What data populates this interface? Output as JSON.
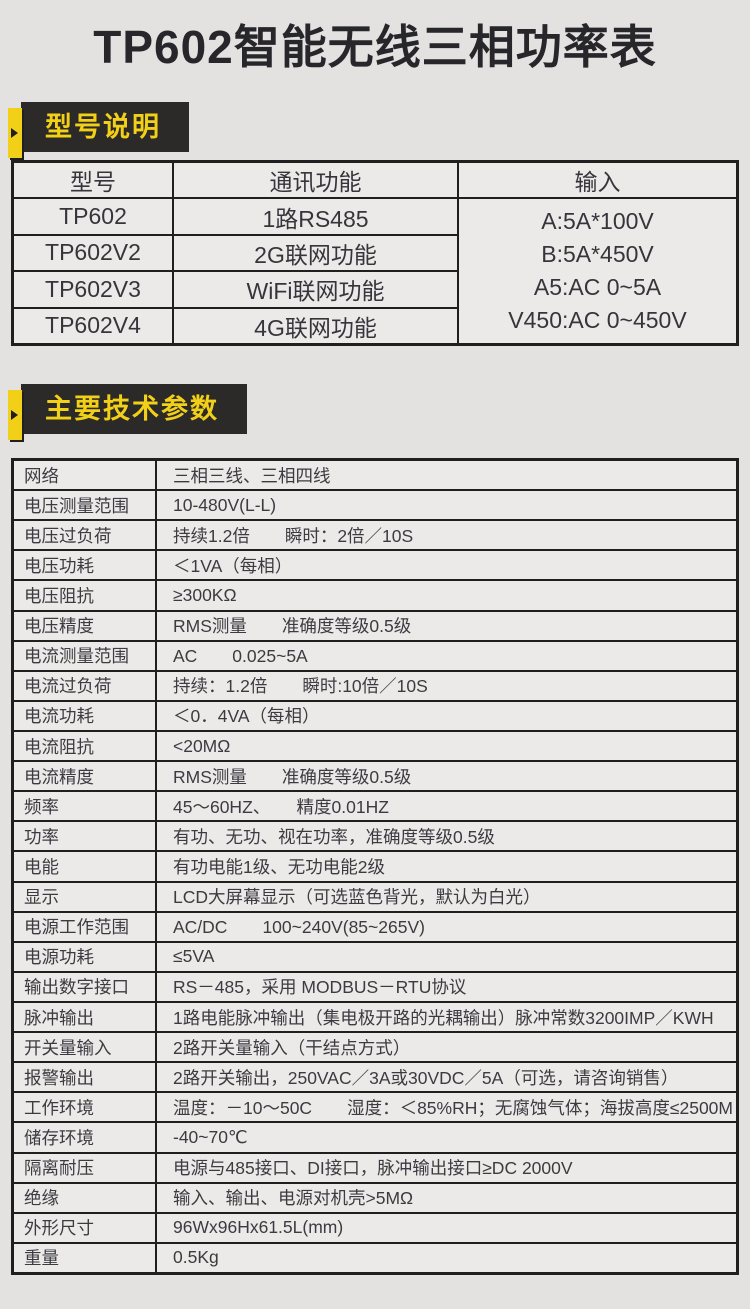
{
  "page": {
    "title": "TP602智能无线三相功率表"
  },
  "sections": {
    "model": {
      "label": "型号说明"
    },
    "specs": {
      "label": "主要技术参数"
    }
  },
  "colors": {
    "accent_yellow": "#f3d018",
    "header_black": "#2b2a28",
    "table_rule": "#1f1f1f",
    "page_bg": "#e3e2e0",
    "cell_bg": "#ebeae8"
  },
  "icons": {
    "ribbon_arrow": "right-triangle"
  },
  "model_table": {
    "headers": [
      "型号",
      "通讯功能",
      "输入"
    ],
    "rows": [
      {
        "model": "TP602",
        "comm": "1路RS485"
      },
      {
        "model": "TP602V2",
        "comm": "2G联网功能"
      },
      {
        "model": "TP602V3",
        "comm": "WiFi联网功能"
      },
      {
        "model": "TP602V4",
        "comm": "4G联网功能"
      }
    ],
    "input_options": [
      "A:5A*100V",
      "B:5A*450V",
      "A5:AC 0~5A",
      "V450:AC 0~450V"
    ]
  },
  "spec_table": {
    "rows": [
      {
        "label": "网络",
        "value": "三相三线、三相四线"
      },
      {
        "label": "电压测量范围",
        "value": "10-480V(L-L)"
      },
      {
        "label": "电压过负荷",
        "value": "持续1.2倍　　瞬时：2倍／10S"
      },
      {
        "label": "电压功耗",
        "value": "＜1VA（每相）"
      },
      {
        "label": "电压阻抗",
        "value": "≥300KΩ"
      },
      {
        "label": "电压精度",
        "value": "RMS测量　　准确度等级0.5级"
      },
      {
        "label": "电流测量范围",
        "value": "AC　　0.025~5A"
      },
      {
        "label": "电流过负荷",
        "value": "持续：1.2倍　　瞬时:10倍／10S"
      },
      {
        "label": "电流功耗",
        "value": "＜0．4VA（每相）"
      },
      {
        "label": "电流阻抗",
        "value": "<20MΩ"
      },
      {
        "label": "电流精度",
        "value": "RMS测量　　准确度等级0.5级"
      },
      {
        "label": "频率",
        "value": "45～60HZ、　　精度0.01HZ"
      },
      {
        "label": "功率",
        "value": "有功、无功、视在功率，准确度等级0.5级"
      },
      {
        "label": "电能",
        "value": "有功电能1级、无功电能2级"
      },
      {
        "label": "显示",
        "value": "LCD大屏幕显示（可选蓝色背光，默认为白光）"
      },
      {
        "label": "电源工作范围",
        "value": "AC/DC　　100~240V(85~265V)"
      },
      {
        "label": "电源功耗",
        "value": "≤5VA"
      },
      {
        "label": "输出数字接口",
        "value": "RS－485，采用 MODBUS－RTU协议"
      },
      {
        "label": "脉冲输出",
        "value": "1路电能脉冲输出（集电极开路的光耦输出）脉冲常数3200IMP／KWH"
      },
      {
        "label": "开关量输入",
        "value": "2路开关量输入（干结点方式）"
      },
      {
        "label": "报警输出",
        "value": "2路开关输出，250VAC／3A或30VDC／5A（可选，请咨询销售）"
      },
      {
        "label": "工作环境",
        "value": "温度：－10～50C　　湿度：＜85%RH；无腐蚀气体；海拔高度≤2500M"
      },
      {
        "label": "储存环境",
        "value": "-40~70℃"
      },
      {
        "label": "隔离耐压",
        "value": "电源与485接口、DI接口，脉冲输出接口≥DC 2000V"
      },
      {
        "label": "绝缘",
        "value": "输入、输出、电源对机壳>5MΩ"
      },
      {
        "label": "外形尺寸",
        "value": "96Wx96Hx61.5L(mm)"
      },
      {
        "label": "重量",
        "value": "0.5Kg"
      }
    ]
  }
}
